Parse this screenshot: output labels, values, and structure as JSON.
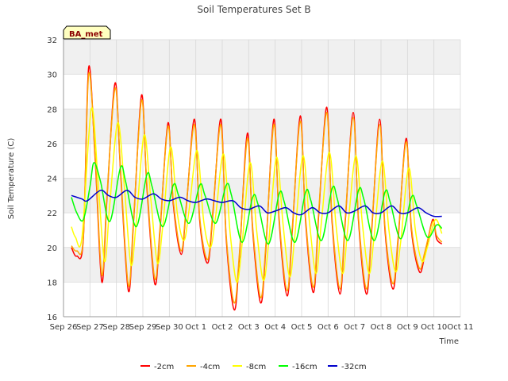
{
  "chart_data": {
    "type": "line",
    "title": "Soil Temperatures Set B",
    "xlabel": "Time",
    "ylabel": "Soil Temperature (C)",
    "station_label": "BA_met",
    "ylim": [
      16,
      32
    ],
    "yticks": [
      16,
      18,
      20,
      22,
      24,
      26,
      28,
      30,
      32
    ],
    "xlim": [
      0,
      15
    ],
    "xticks": [
      {
        "x": 0,
        "label": "Sep 26"
      },
      {
        "x": 1,
        "label": "Sep 27"
      },
      {
        "x": 2,
        "label": "Sep 28"
      },
      {
        "x": 3,
        "label": "Sep 29"
      },
      {
        "x": 4,
        "label": "Sep 30"
      },
      {
        "x": 5,
        "label": "Oct 1"
      },
      {
        "x": 6,
        "label": "Oct 2"
      },
      {
        "x": 7,
        "label": "Oct 3"
      },
      {
        "x": 8,
        "label": "Oct 4"
      },
      {
        "x": 9,
        "label": "Oct 5"
      },
      {
        "x": 10,
        "label": "Oct 6"
      },
      {
        "x": 11,
        "label": "Oct 7"
      },
      {
        "x": 12,
        "label": "Oct 8"
      },
      {
        "x": 13,
        "label": "Oct 9"
      },
      {
        "x": 14,
        "label": "Oct 10"
      },
      {
        "x": 15,
        "label": "Oct 11"
      }
    ],
    "grid": true,
    "legend_position": "bottom",
    "series": [
      {
        "name": "-2cm",
        "color": "#ff0000",
        "x": [
          0.3,
          0.5,
          0.75,
          0.95,
          1.2,
          1.45,
          1.65,
          1.95,
          2.15,
          2.45,
          2.65,
          2.95,
          3.15,
          3.45,
          3.65,
          3.95,
          4.15,
          4.45,
          4.65,
          4.95,
          5.15,
          5.45,
          5.65,
          5.95,
          6.15,
          6.45,
          6.65,
          6.95,
          7.15,
          7.45,
          7.65,
          7.95,
          8.15,
          8.45,
          8.65,
          8.95,
          9.15,
          9.45,
          9.65,
          9.95,
          10.15,
          10.45,
          10.65,
          10.95,
          11.15,
          11.45,
          11.65,
          11.95,
          12.15,
          12.45,
          12.65,
          12.95,
          13.15,
          13.45,
          13.65,
          13.95,
          14.1,
          14.3
        ],
        "y": [
          20.0,
          19.5,
          20.5,
          30.4,
          25.0,
          18.0,
          23.0,
          29.5,
          24.5,
          17.5,
          21.5,
          28.8,
          23.5,
          17.9,
          21.0,
          27.2,
          22.5,
          19.6,
          22.5,
          27.4,
          21.5,
          19.1,
          22.0,
          27.4,
          20.5,
          16.4,
          19.5,
          26.6,
          21.0,
          16.8,
          20.0,
          27.4,
          21.5,
          17.2,
          21.0,
          27.6,
          21.5,
          17.4,
          22.0,
          28.1,
          21.5,
          17.3,
          21.5,
          27.8,
          21.5,
          17.3,
          21.0,
          27.4,
          21.0,
          17.6,
          20.5,
          26.3,
          21.0,
          18.6,
          19.5,
          21.6,
          20.5,
          20.2
        ]
      },
      {
        "name": "-4cm",
        "color": "#ffa500",
        "x": [
          0.3,
          0.5,
          0.75,
          0.95,
          1.2,
          1.45,
          1.65,
          1.95,
          2.15,
          2.45,
          2.65,
          2.95,
          3.15,
          3.45,
          3.65,
          3.95,
          4.15,
          4.45,
          4.65,
          4.95,
          5.15,
          5.45,
          5.65,
          5.95,
          6.15,
          6.45,
          6.65,
          6.95,
          7.15,
          7.45,
          7.65,
          7.95,
          8.15,
          8.45,
          8.65,
          8.95,
          9.15,
          9.45,
          9.65,
          9.95,
          10.15,
          10.45,
          10.65,
          10.95,
          11.15,
          11.45,
          11.65,
          11.95,
          12.15,
          12.45,
          12.65,
          12.95,
          13.15,
          13.45,
          13.65,
          13.95,
          14.1,
          14.3
        ],
        "y": [
          20.1,
          19.8,
          20.6,
          30.0,
          25.2,
          18.4,
          23.2,
          29.2,
          24.7,
          17.8,
          21.7,
          28.5,
          23.7,
          18.2,
          21.2,
          27.0,
          22.7,
          19.8,
          22.6,
          27.1,
          21.7,
          19.3,
          22.2,
          27.1,
          20.7,
          16.8,
          19.7,
          26.3,
          21.2,
          17.1,
          20.2,
          27.1,
          21.7,
          17.5,
          21.2,
          27.3,
          21.7,
          17.7,
          22.2,
          27.8,
          21.7,
          17.6,
          21.7,
          27.5,
          21.7,
          17.6,
          21.2,
          27.1,
          21.2,
          17.9,
          20.7,
          26.1,
          21.2,
          18.8,
          19.7,
          21.5,
          20.7,
          20.3
        ]
      },
      {
        "name": "-8cm",
        "color": "#ffff00",
        "x": [
          0.3,
          0.45,
          0.7,
          1.05,
          1.3,
          1.55,
          1.75,
          2.05,
          2.3,
          2.55,
          2.75,
          3.05,
          3.3,
          3.55,
          3.75,
          4.05,
          4.3,
          4.55,
          4.75,
          5.05,
          5.3,
          5.55,
          5.75,
          6.05,
          6.3,
          6.55,
          6.75,
          7.05,
          7.3,
          7.55,
          7.75,
          8.05,
          8.3,
          8.55,
          8.75,
          9.05,
          9.3,
          9.55,
          9.75,
          10.05,
          10.3,
          10.55,
          10.75,
          11.05,
          11.3,
          11.55,
          11.75,
          12.05,
          12.3,
          12.55,
          12.75,
          13.05,
          13.3,
          13.55,
          13.75,
          14.05,
          14.3
        ],
        "y": [
          21.2,
          20.6,
          20.6,
          28.0,
          24.0,
          19.2,
          22.5,
          27.2,
          23.5,
          19.0,
          21.5,
          26.5,
          22.8,
          19.1,
          21.2,
          25.8,
          22.0,
          20.4,
          22.2,
          25.6,
          21.5,
          20.0,
          21.8,
          25.4,
          20.8,
          18.0,
          20.2,
          24.9,
          21.0,
          18.1,
          20.2,
          25.2,
          21.3,
          18.3,
          20.8,
          25.3,
          21.4,
          18.5,
          21.5,
          25.5,
          21.3,
          18.5,
          21.2,
          25.3,
          21.3,
          18.5,
          20.8,
          25.0,
          21.0,
          18.6,
          20.4,
          24.6,
          21.0,
          19.2,
          20.0,
          21.6,
          20.8
        ]
      },
      {
        "name": "-16cm",
        "color": "#00ff00",
        "x": [
          0.3,
          0.5,
          0.75,
          1.0,
          1.15,
          1.4,
          1.75,
          2.15,
          2.35,
          2.75,
          3.15,
          3.35,
          3.75,
          4.15,
          4.35,
          4.75,
          5.15,
          5.35,
          5.75,
          6.15,
          6.35,
          6.75,
          7.15,
          7.35,
          7.75,
          8.15,
          8.35,
          8.75,
          9.15,
          9.35,
          9.75,
          10.15,
          10.35,
          10.75,
          11.15,
          11.35,
          11.75,
          12.15,
          12.35,
          12.75,
          13.15,
          13.35,
          13.75,
          14.1,
          14.3
        ],
        "y": [
          22.9,
          22.0,
          21.6,
          23.5,
          24.9,
          23.8,
          21.5,
          24.6,
          23.8,
          21.2,
          24.2,
          23.5,
          21.2,
          23.6,
          23.0,
          21.4,
          23.6,
          23.0,
          21.4,
          23.6,
          23.0,
          20.3,
          22.9,
          22.5,
          20.2,
          23.1,
          22.6,
          20.3,
          23.2,
          22.7,
          20.4,
          23.4,
          22.8,
          20.4,
          23.3,
          22.8,
          20.4,
          23.2,
          22.6,
          20.5,
          22.9,
          22.4,
          20.6,
          21.3,
          21.1
        ]
      },
      {
        "name": "-32cm",
        "color": "#0000cc",
        "x": [
          0.3,
          0.7,
          0.9,
          1.4,
          1.7,
          2.0,
          2.4,
          2.7,
          3.0,
          3.4,
          3.7,
          4.0,
          4.4,
          4.7,
          5.0,
          5.4,
          5.7,
          6.0,
          6.4,
          6.7,
          7.0,
          7.4,
          7.7,
          8.0,
          8.4,
          8.7,
          9.0,
          9.4,
          9.7,
          10.0,
          10.4,
          10.7,
          11.0,
          11.4,
          11.7,
          12.0,
          12.4,
          12.7,
          13.0,
          13.4,
          13.7,
          14.0,
          14.3
        ],
        "y": [
          23.0,
          22.8,
          22.7,
          23.3,
          23.0,
          22.9,
          23.3,
          22.9,
          22.8,
          23.1,
          22.8,
          22.7,
          22.9,
          22.7,
          22.6,
          22.8,
          22.7,
          22.6,
          22.7,
          22.3,
          22.2,
          22.4,
          22.0,
          22.1,
          22.3,
          22.0,
          21.9,
          22.3,
          22.0,
          22.0,
          22.4,
          22.0,
          22.1,
          22.4,
          22.0,
          22.0,
          22.4,
          22.0,
          22.0,
          22.3,
          22.0,
          21.8,
          21.8
        ]
      }
    ]
  },
  "colors": {
    "plot_background": "#ffffff",
    "band_background": "#f0f0f0",
    "grid": "#d8d8d8",
    "station_box_fill": "#ffffc0"
  }
}
